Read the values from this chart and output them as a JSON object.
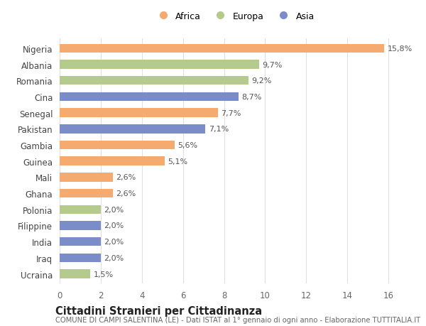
{
  "categories": [
    "Nigeria",
    "Albania",
    "Romania",
    "Cina",
    "Senegal",
    "Pakistan",
    "Gambia",
    "Guinea",
    "Mali",
    "Ghana",
    "Polonia",
    "Filippine",
    "India",
    "Iraq",
    "Ucraina"
  ],
  "values": [
    15.8,
    9.7,
    9.2,
    8.7,
    7.7,
    7.1,
    5.6,
    5.1,
    2.6,
    2.6,
    2.0,
    2.0,
    2.0,
    2.0,
    1.5
  ],
  "labels": [
    "15,8%",
    "9,7%",
    "9,2%",
    "8,7%",
    "7,7%",
    "7,1%",
    "5,6%",
    "5,1%",
    "2,6%",
    "2,6%",
    "2,0%",
    "2,0%",
    "2,0%",
    "2,0%",
    "1,5%"
  ],
  "continents": [
    "Africa",
    "Europa",
    "Europa",
    "Asia",
    "Africa",
    "Asia",
    "Africa",
    "Africa",
    "Africa",
    "Africa",
    "Europa",
    "Asia",
    "Asia",
    "Asia",
    "Europa"
  ],
  "colors": {
    "Africa": "#F5AA6F",
    "Europa": "#B5CA8D",
    "Asia": "#7B8DC8"
  },
  "legend_labels": [
    "Africa",
    "Europa",
    "Asia"
  ],
  "xlim": [
    0,
    17
  ],
  "xticks": [
    0,
    2,
    4,
    6,
    8,
    10,
    12,
    14,
    16
  ],
  "title": "Cittadini Stranieri per Cittadinanza",
  "subtitle": "COMUNE DI CAMPI SALENTINA (LE) - Dati ISTAT al 1° gennaio di ogni anno - Elaborazione TUTTITALIA.IT",
  "bg_color": "#ffffff",
  "bar_height": 0.55,
  "label_fontsize": 8.0,
  "ytick_fontsize": 8.5,
  "xtick_fontsize": 8.5,
  "title_fontsize": 10.5,
  "subtitle_fontsize": 7.2,
  "grid_color": "#e0e0e0"
}
